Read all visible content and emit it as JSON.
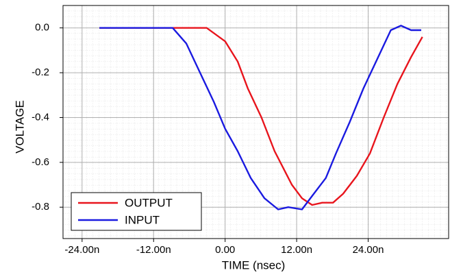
{
  "chart_data": {
    "type": "line",
    "x_label": "TIME (nsec)",
    "y_label": "VOLTAGE",
    "xlim": [
      -27.2,
      37.5
    ],
    "ylim": [
      -0.94,
      0.1
    ],
    "xticks": [
      {
        "value": -24,
        "label": "-24.00n"
      },
      {
        "value": -12,
        "label": "-12.00n"
      },
      {
        "value": 0,
        "label": "0.00"
      },
      {
        "value": 12,
        "label": "12.00n"
      },
      {
        "value": 24,
        "label": "24.00n"
      }
    ],
    "yticks": [
      {
        "value": 0,
        "label": "0.0"
      },
      -0.2,
      -0.4,
      -0.6,
      -0.8
    ],
    "grid": true,
    "legend_position": "lower left",
    "series": [
      {
        "name": "OUTPUT",
        "color": "#e8141c",
        "x": [
          -21.1,
          -3.1,
          0,
          2.1,
          3.8,
          6.1,
          8.3,
          11.2,
          12.9,
          14.6,
          16.3,
          18.1,
          19.8,
          22.1,
          24.3,
          26.6,
          28.9,
          31.2,
          33.1
        ],
        "values": [
          0.0,
          0.0,
          -0.06,
          -0.15,
          -0.27,
          -0.4,
          -0.55,
          -0.7,
          -0.76,
          -0.79,
          -0.78,
          -0.78,
          -0.74,
          -0.66,
          -0.56,
          -0.4,
          -0.25,
          -0.13,
          -0.04
        ]
      },
      {
        "name": "INPUT",
        "color": "#1a1ae0",
        "x": [
          -21.1,
          -8.8,
          -6.5,
          -4.2,
          -1.9,
          0,
          2.1,
          4.3,
          6.6,
          8.9,
          10.6,
          12.9,
          14.6,
          16.9,
          18.6,
          20.9,
          23.2,
          25.5,
          27.8,
          29.5,
          31.2,
          32.9
        ],
        "values": [
          0.0,
          0.0,
          -0.07,
          -0.2,
          -0.33,
          -0.45,
          -0.55,
          -0.67,
          -0.76,
          -0.81,
          -0.8,
          -0.81,
          -0.75,
          -0.67,
          -0.56,
          -0.42,
          -0.27,
          -0.14,
          -0.01,
          0.01,
          -0.01,
          -0.01
        ]
      }
    ]
  }
}
